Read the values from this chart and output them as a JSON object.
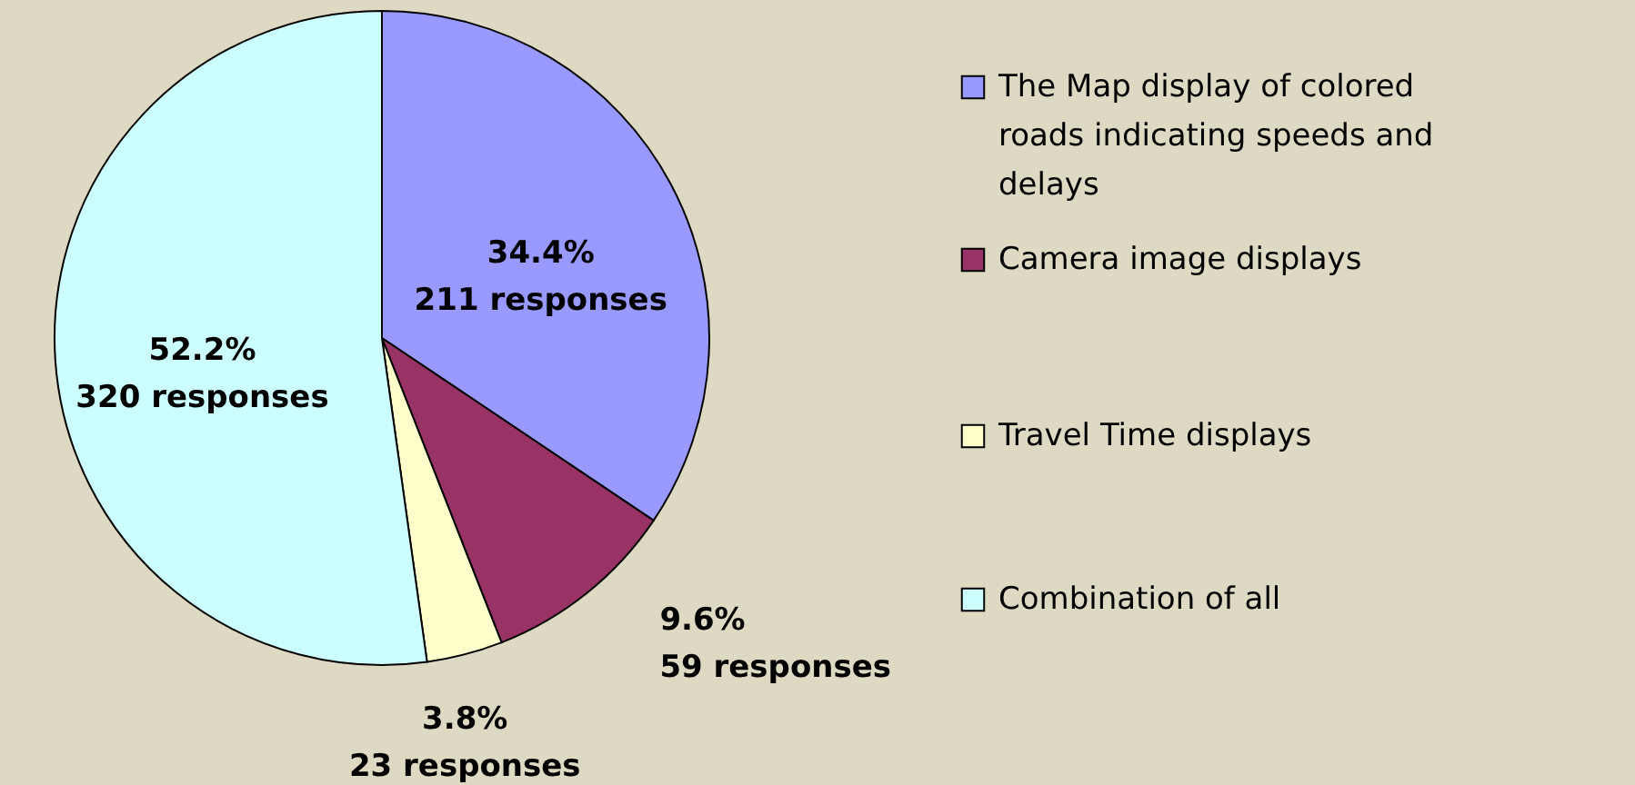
{
  "chart_data": {
    "type": "pie",
    "categories": [
      "The Map display of colored roads indicating speeds and delays",
      "Camera image displays",
      "Travel Time displays",
      "Combination of all"
    ],
    "values": [
      211,
      59,
      23,
      320
    ],
    "colors": [
      "#9999ff",
      "#993366",
      "#ffffcc",
      "#ccffff"
    ],
    "value_labels": [
      "34.4%\n211 responses",
      "9.6%\n59 responses",
      "3.8%\n23 responses",
      "52.2%\n320 responses"
    ],
    "legend": "right"
  }
}
